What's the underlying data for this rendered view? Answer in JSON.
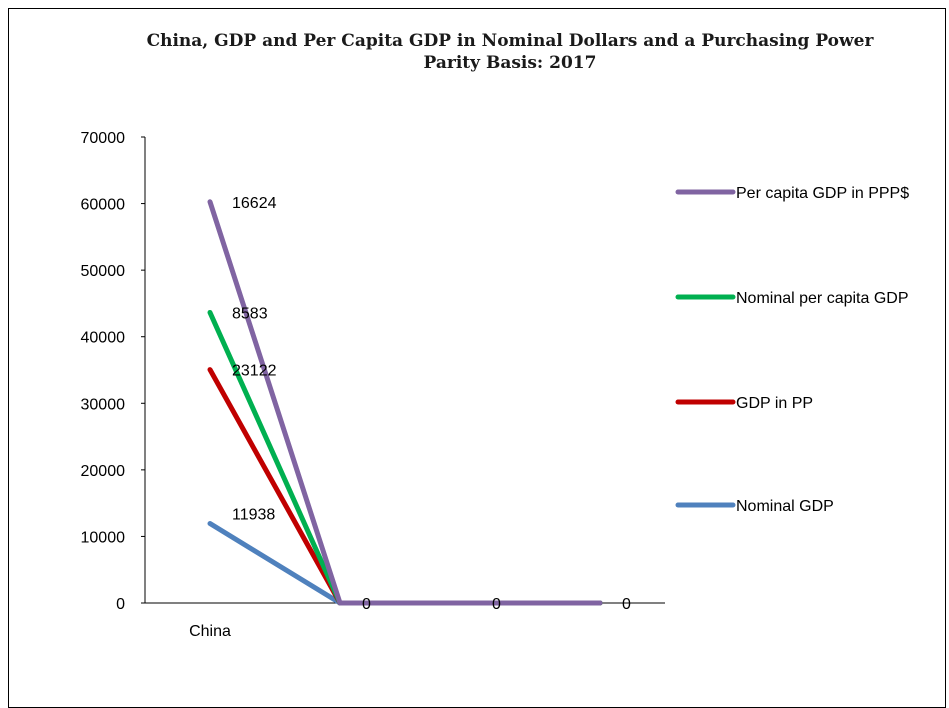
{
  "chart_data": {
    "type": "line",
    "title": "China, GDP and Per Capita GDP in Nominal Dollars and a Purchasing Power Parity Basis: 2017",
    "categories": [
      "China",
      "",
      "",
      ""
    ],
    "ylim": [
      0,
      70000
    ],
    "yticks": [
      0,
      10000,
      20000,
      30000,
      40000,
      50000,
      60000,
      70000
    ],
    "stacked": true,
    "grid": false,
    "legend_position": "right",
    "series": [
      {
        "name": "Nominal GDP",
        "values": [
          11938,
          0,
          0,
          0
        ],
        "color": "#4f81bd",
        "labels": [
          "11938",
          "",
          "",
          ""
        ]
      },
      {
        "name": "GDP in PP",
        "values": [
          23122,
          0,
          0,
          0
        ],
        "color": "#c00000",
        "labels": [
          "23122",
          "",
          "",
          ""
        ]
      },
      {
        "name": "Nominal per capita GDP",
        "values": [
          8583,
          0,
          0,
          0
        ],
        "color": "#00b050",
        "labels": [
          "8583",
          "",
          "",
          ""
        ]
      },
      {
        "name": "Per capita GDP in PPP$",
        "values": [
          16624,
          0,
          0,
          0
        ],
        "color": "#8064a2",
        "labels": [
          "16624",
          "0",
          "0",
          "0"
        ]
      }
    ]
  }
}
